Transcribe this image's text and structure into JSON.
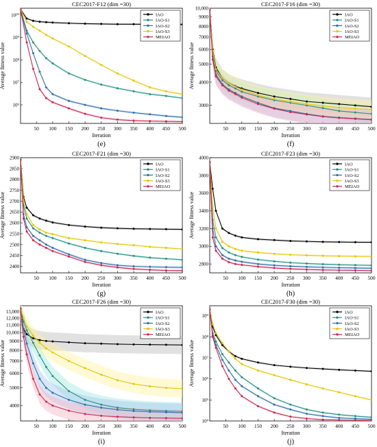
{
  "figure": {
    "series_styles": [
      {
        "name": "IAO",
        "color": "#000000",
        "band": "#bdbdbd"
      },
      {
        "name": "IAO-S1",
        "color": "#2e8b7e",
        "band": "#9fe8e0"
      },
      {
        "name": "IAO-S2",
        "color": "#2e6ea8",
        "band": "#a8c8f0"
      },
      {
        "name": "IAO-S3",
        "color": "#e6c20a",
        "band": "#fff3a0"
      },
      {
        "name": "MEIAO",
        "color": "#c8264e",
        "band": "#f6b3c3"
      }
    ]
  },
  "chart_data": [
    {
      "type": "line",
      "panel_label": "(e)",
      "title": "CEC2017-F12 (dim =30)",
      "xlabel": "Iteration",
      "ylabel": "Average fitness value",
      "xlim": [
        1,
        500
      ],
      "ylim": [
        150000,
        20000000000
      ],
      "log_y": true,
      "xticks": [
        50,
        100,
        150,
        200,
        250,
        300,
        350,
        400,
        450,
        500
      ],
      "yticks": [
        {
          "v": 1000000,
          "t": "10⁶"
        },
        {
          "v": 10000000,
          "t": "10⁷"
        },
        {
          "v": 100000000,
          "t": "10⁸"
        },
        {
          "v": 1000000000,
          "t": "10⁹"
        },
        {
          "v": 10000000000,
          "t": "10¹⁰"
        }
      ],
      "legend": "top-right",
      "grid": false,
      "x": [
        1,
        20,
        40,
        60,
        80,
        100,
        150,
        200,
        250,
        300,
        350,
        400,
        450,
        500
      ],
      "series": [
        {
          "name": "IAO",
          "values": [
            18000000000,
            7000000000,
            5500000000,
            5000000000,
            4800000000,
            4600000000,
            4300000000,
            4100000000,
            4000000000,
            3900000000,
            3900000000,
            3850000000,
            3800000000,
            3800000000
          ]
        },
        {
          "name": "IAO-S1",
          "values": [
            18000000000,
            2000000000,
            600000000,
            250000000,
            120000000,
            70000000,
            25000000,
            13000000,
            8000000,
            5500000,
            4000000,
            3000000,
            2500000,
            2000000
          ]
        },
        {
          "name": "IAO-S2",
          "values": [
            18000000000,
            1500000000,
            200000000,
            30000000,
            6000000,
            3000000,
            1500000,
            1000000,
            700000,
            550000,
            450000,
            380000,
            320000,
            280000
          ]
        },
        {
          "name": "IAO-S3",
          "values": [
            18000000000,
            5000000000,
            3000000000,
            2000000000,
            1300000000,
            900000000,
            400000000,
            150000000,
            60000000,
            25000000,
            12000000,
            6000000,
            4000000,
            3000000
          ]
        },
        {
          "name": "MEIAO",
          "values": [
            18000000000,
            600000000,
            40000000,
            5000000,
            2000000,
            1300000,
            700000,
            400000,
            270000,
            220000,
            200000,
            190000,
            185000,
            180000
          ]
        }
      ]
    },
    {
      "type": "line",
      "panel_label": "(f)",
      "title": "CEC2017-F16 (dim =30)",
      "xlabel": "Iteration",
      "ylabel": "Average fitness value",
      "xlim": [
        1,
        500
      ],
      "ylim": [
        2400,
        10000
      ],
      "log_y": true,
      "xticks": [
        50,
        100,
        150,
        200,
        250,
        300,
        350,
        400,
        450,
        500
      ],
      "yticks": [
        {
          "v": 3000,
          "t": "3000"
        },
        {
          "v": 4000,
          "t": "4000"
        },
        {
          "v": 5000,
          "t": "5000"
        },
        {
          "v": 6000,
          "t": "6000"
        },
        {
          "v": 7000,
          "t": "7000"
        },
        {
          "v": 8000,
          "t": "8000"
        },
        {
          "v": 9000,
          "t": "9000"
        },
        {
          "v": 10000,
          "t": "10,000"
        }
      ],
      "legend": "top-right",
      "grid": false,
      "x": [
        1,
        10,
        20,
        40,
        60,
        80,
        100,
        150,
        200,
        250,
        300,
        350,
        400,
        450,
        500
      ],
      "series": [
        {
          "name": "IAO",
          "values": [
            9800,
            6000,
            4800,
            4200,
            3950,
            3800,
            3700,
            3500,
            3350,
            3250,
            3150,
            3100,
            3050,
            3000,
            2950
          ]
        },
        {
          "name": "IAO-S1",
          "values": [
            9800,
            5800,
            4600,
            4100,
            3850,
            3700,
            3550,
            3350,
            3200,
            3100,
            3000,
            2900,
            2800,
            2750,
            2700
          ]
        },
        {
          "name": "IAO-S2",
          "values": [
            9800,
            5500,
            4400,
            3900,
            3650,
            3500,
            3350,
            3100,
            2900,
            2800,
            2700,
            2620,
            2580,
            2550,
            2520
          ]
        },
        {
          "name": "IAO-S3",
          "values": [
            9800,
            5900,
            4700,
            4200,
            3950,
            3780,
            3650,
            3400,
            3250,
            3150,
            3050,
            2980,
            2920,
            2880,
            2850
          ]
        },
        {
          "name": "MEIAO",
          "values": [
            9800,
            5300,
            4300,
            3850,
            3600,
            3450,
            3300,
            3050,
            2880,
            2760,
            2680,
            2610,
            2570,
            2540,
            2510
          ]
        }
      ]
    },
    {
      "type": "line",
      "panel_label": "(g)",
      "title": "CEC2017-F21 (dim =30)",
      "xlabel": "Iteration",
      "ylabel": "Average fitness value",
      "xlim": [
        1,
        500
      ],
      "ylim": [
        2370,
        2900
      ],
      "log_y": false,
      "xticks": [
        50,
        100,
        150,
        200,
        250,
        300,
        350,
        400,
        450,
        500
      ],
      "yticks": [
        {
          "v": 2400,
          "t": "2400"
        },
        {
          "v": 2450,
          "t": "2450"
        },
        {
          "v": 2500,
          "t": "2500"
        },
        {
          "v": 2550,
          "t": "2550"
        },
        {
          "v": 2600,
          "t": "2600"
        },
        {
          "v": 2650,
          "t": "2650"
        },
        {
          "v": 2700,
          "t": "2700"
        },
        {
          "v": 2750,
          "t": "2750"
        },
        {
          "v": 2800,
          "t": "2800"
        },
        {
          "v": 2850,
          "t": "2850"
        },
        {
          "v": 2900,
          "t": "2900"
        }
      ],
      "legend": "top-right",
      "grid": false,
      "x": [
        1,
        10,
        20,
        40,
        60,
        80,
        100,
        150,
        200,
        250,
        300,
        350,
        400,
        450,
        500
      ],
      "series": [
        {
          "name": "IAO",
          "values": [
            2890,
            2720,
            2670,
            2635,
            2620,
            2610,
            2602,
            2590,
            2583,
            2578,
            2575,
            2573,
            2572,
            2571,
            2570
          ]
        },
        {
          "name": "IAO-S1",
          "values": [
            2890,
            2680,
            2620,
            2575,
            2555,
            2540,
            2530,
            2505,
            2485,
            2470,
            2458,
            2448,
            2440,
            2435,
            2430
          ]
        },
        {
          "name": "IAO-S2",
          "values": [
            2890,
            2640,
            2580,
            2540,
            2520,
            2500,
            2485,
            2455,
            2430,
            2415,
            2405,
            2400,
            2398,
            2396,
            2395
          ]
        },
        {
          "name": "IAO-S3",
          "values": [
            2890,
            2700,
            2640,
            2590,
            2570,
            2555,
            2548,
            2530,
            2520,
            2510,
            2503,
            2497,
            2490,
            2485,
            2480
          ]
        },
        {
          "name": "MEIAO",
          "values": [
            2890,
            2620,
            2560,
            2520,
            2500,
            2485,
            2470,
            2445,
            2420,
            2405,
            2395,
            2388,
            2384,
            2381,
            2380
          ]
        }
      ]
    },
    {
      "type": "line",
      "panel_label": "(h)",
      "title": "CEC2017-F23 (dim =30)",
      "xlabel": "Iteration",
      "ylabel": "Average fitness value",
      "xlim": [
        1,
        500
      ],
      "ylim": [
        2700,
        4000
      ],
      "log_y": false,
      "xticks": [
        50,
        100,
        150,
        200,
        250,
        300,
        350,
        400,
        450,
        500
      ],
      "yticks": [
        {
          "v": 2800,
          "t": "2800"
        },
        {
          "v": 3000,
          "t": "3000"
        },
        {
          "v": 3200,
          "t": "3200"
        },
        {
          "v": 3400,
          "t": "3400"
        },
        {
          "v": 3600,
          "t": "3600"
        },
        {
          "v": 3800,
          "t": "3800"
        },
        {
          "v": 4000,
          "t": "4000"
        }
      ],
      "legend": "top-right",
      "grid": false,
      "x": [
        1,
        10,
        20,
        40,
        60,
        80,
        100,
        150,
        200,
        250,
        300,
        350,
        400,
        450,
        500
      ],
      "series": [
        {
          "name": "IAO",
          "values": [
            3950,
            3650,
            3400,
            3200,
            3150,
            3120,
            3100,
            3080,
            3070,
            3060,
            3055,
            3050,
            3048,
            3046,
            3045
          ]
        },
        {
          "name": "IAO-S1",
          "values": [
            3950,
            3300,
            3100,
            2980,
            2930,
            2900,
            2880,
            2850,
            2830,
            2815,
            2805,
            2798,
            2792,
            2788,
            2785
          ]
        },
        {
          "name": "IAO-S2",
          "values": [
            3950,
            3200,
            3000,
            2900,
            2860,
            2840,
            2825,
            2800,
            2785,
            2775,
            2768,
            2762,
            2758,
            2755,
            2752
          ]
        },
        {
          "name": "IAO-S3",
          "values": [
            3950,
            3450,
            3200,
            3050,
            3000,
            2970,
            2950,
            2930,
            2915,
            2905,
            2898,
            2893,
            2890,
            2887,
            2885
          ]
        },
        {
          "name": "MEIAO",
          "values": [
            3950,
            3100,
            2950,
            2860,
            2820,
            2800,
            2790,
            2770,
            2755,
            2745,
            2738,
            2733,
            2730,
            2728,
            2725
          ]
        }
      ]
    },
    {
      "type": "line",
      "panel_label": "(i)",
      "title": "CEC2017-F26 (dim =30)",
      "xlabel": "Iteration",
      "ylabel": "Average fitness value",
      "xlim": [
        1,
        500
      ],
      "ylim": [
        3300,
        14000
      ],
      "log_y": true,
      "xticks": [
        50,
        100,
        150,
        200,
        250,
        300,
        350,
        400,
        450,
        500
      ],
      "yticks": [
        {
          "v": 4000,
          "t": "4000"
        },
        {
          "v": 5000,
          "t": "5000"
        },
        {
          "v": 6000,
          "t": "6000"
        },
        {
          "v": 7000,
          "t": "7000"
        },
        {
          "v": 8000,
          "t": "8000"
        },
        {
          "v": 9000,
          "t": "9000"
        },
        {
          "v": 10000,
          "t": "10,000"
        },
        {
          "v": 11000,
          "t": "11,000"
        },
        {
          "v": 12000,
          "t": "12,000"
        },
        {
          "v": 13000,
          "t": "13,000"
        }
      ],
      "legend": "top-right",
      "grid": false,
      "x": [
        1,
        10,
        20,
        40,
        60,
        80,
        100,
        150,
        200,
        250,
        300,
        350,
        400,
        450,
        500
      ],
      "series": [
        {
          "name": "IAO",
          "values": [
            13500,
            10500,
            9800,
            9300,
            9100,
            9000,
            8950,
            8850,
            8750,
            8700,
            8650,
            8620,
            8600,
            8580,
            8560
          ]
        },
        {
          "name": "IAO-S1",
          "values": [
            13500,
            11500,
            10300,
            8800,
            7500,
            6500,
            5800,
            4800,
            4300,
            4050,
            3900,
            3820,
            3770,
            3740,
            3720
          ]
        },
        {
          "name": "IAO-S2",
          "values": [
            13500,
            10500,
            8700,
            6800,
            5600,
            5000,
            4700,
            4300,
            4050,
            3900,
            3800,
            3740,
            3700,
            3680,
            3660
          ]
        },
        {
          "name": "IAO-S3",
          "values": [
            13500,
            12000,
            10800,
            9600,
            8800,
            8200,
            7800,
            7000,
            6400,
            5900,
            5500,
            5250,
            5100,
            5000,
            4950
          ]
        },
        {
          "name": "MEIAO",
          "values": [
            13500,
            9500,
            7600,
            5600,
            4600,
            4200,
            4000,
            3750,
            3600,
            3520,
            3480,
            3450,
            3430,
            3420,
            3410
          ]
        }
      ]
    },
    {
      "type": "line",
      "panel_label": "(j)",
      "title": "CEC2017-F30 (dim =30)",
      "xlabel": "Iteration",
      "ylabel": "Average fitness value",
      "xlim": [
        1,
        500
      ],
      "ylim": [
        10000,
        3000000000
      ],
      "log_y": true,
      "xticks": [
        50,
        100,
        150,
        200,
        250,
        300,
        350,
        400,
        450,
        500
      ],
      "yticks": [
        {
          "v": 10000,
          "t": "10⁴"
        },
        {
          "v": 100000,
          "t": "10⁵"
        },
        {
          "v": 1000000,
          "t": "10⁶"
        },
        {
          "v": 10000000,
          "t": "10⁷"
        },
        {
          "v": 100000000,
          "t": "10⁸"
        },
        {
          "v": 1000000000,
          "t": "10⁹"
        }
      ],
      "legend": "top-right",
      "grid": false,
      "x": [
        1,
        10,
        20,
        40,
        60,
        80,
        100,
        150,
        200,
        250,
        300,
        350,
        400,
        450,
        500
      ],
      "series": [
        {
          "name": "IAO",
          "values": [
            2000000000,
            300000000,
            120000000,
            40000000,
            20000000,
            12000000,
            9000000,
            6000000,
            4500000,
            3800000,
            3300000,
            3000000,
            2700000,
            2500000,
            2300000
          ]
        },
        {
          "name": "IAO-S1",
          "values": [
            2000000000,
            150000000,
            60000000,
            15000000,
            6000000,
            2500000,
            1200000,
            350000,
            120000,
            60000,
            35000,
            25000,
            20000,
            17000,
            15000
          ]
        },
        {
          "name": "IAO-S2",
          "values": [
            2000000000,
            120000000,
            40000000,
            8000000,
            2500000,
            900000,
            450000,
            150000,
            60000,
            35000,
            22000,
            17000,
            14000,
            13000,
            12000
          ]
        },
        {
          "name": "IAO-S3",
          "values": [
            2000000000,
            400000000,
            150000000,
            50000000,
            20000000,
            9000000,
            5000000,
            2500000,
            1500000,
            900000,
            550000,
            350000,
            230000,
            150000,
            100000
          ]
        },
        {
          "name": "MEIAO",
          "values": [
            2000000000,
            100000000,
            30000000,
            4000000,
            1000000,
            350000,
            150000,
            50000,
            25000,
            16000,
            13000,
            11500,
            11000,
            10800,
            10600
          ]
        }
      ]
    }
  ]
}
